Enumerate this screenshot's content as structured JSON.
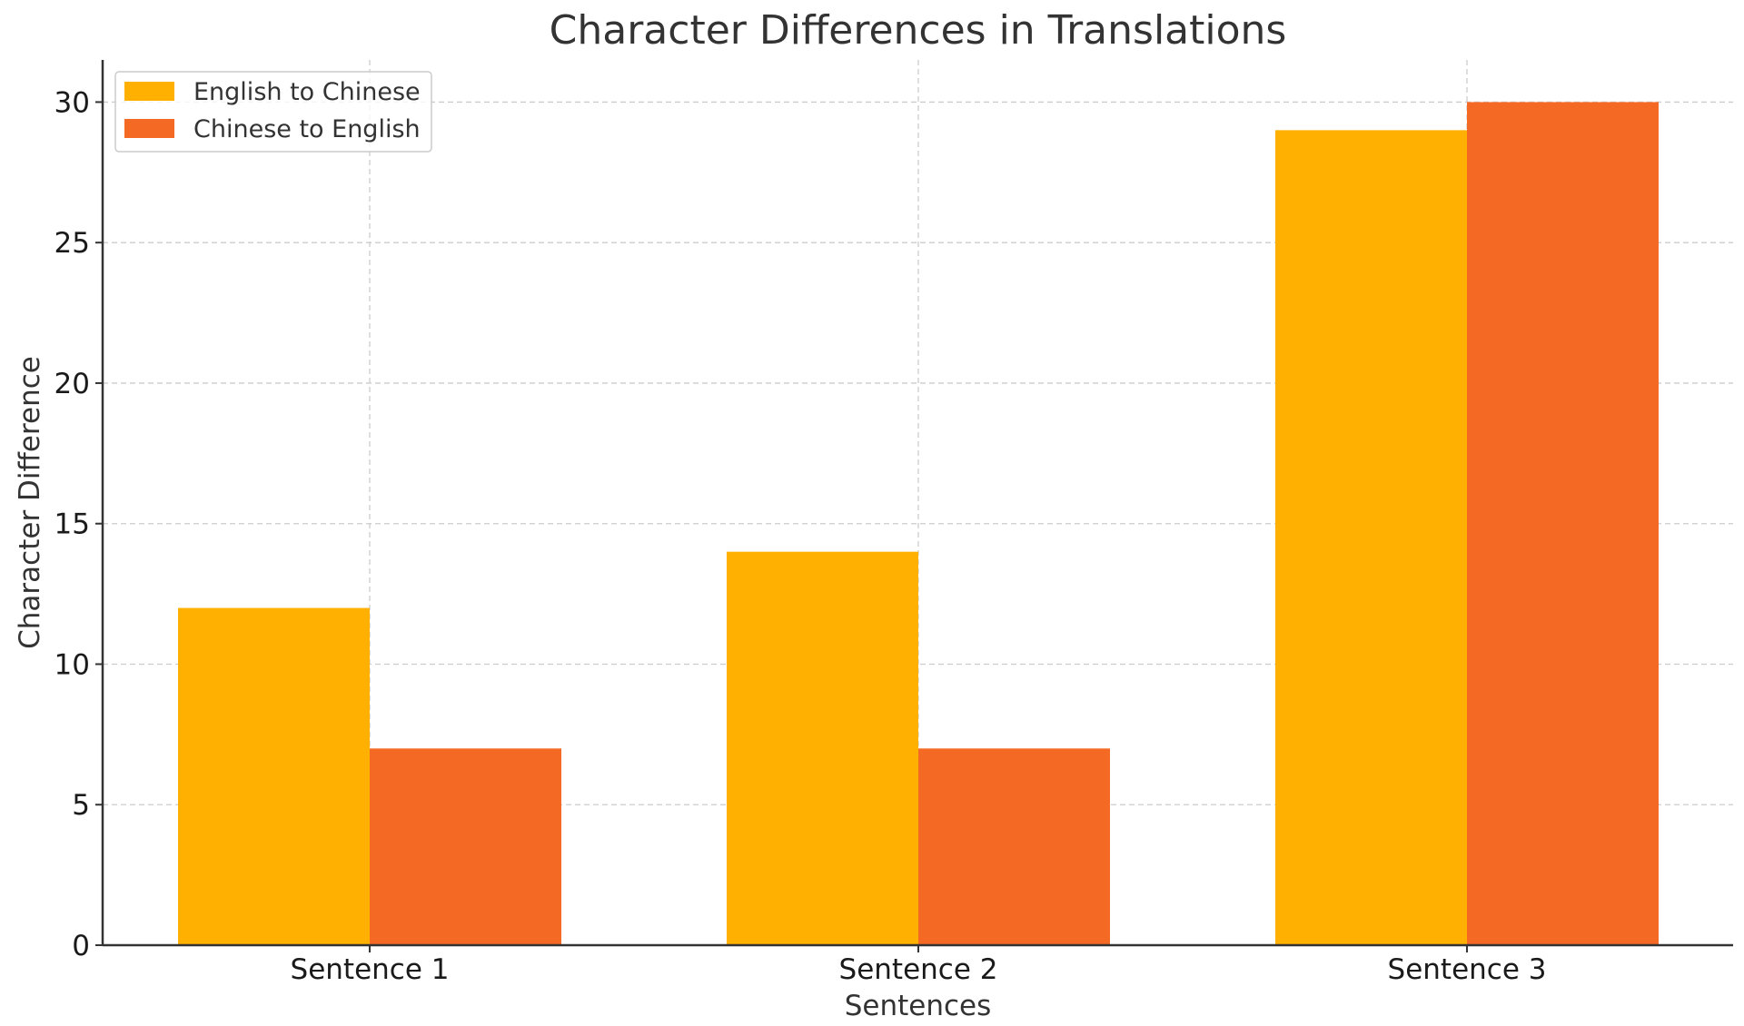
{
  "chart_data": {
    "type": "bar",
    "title": "Character Differences in Translations",
    "xlabel": "Sentences",
    "ylabel": "Character Difference",
    "categories": [
      "Sentence 1",
      "Sentence 2",
      "Sentence 3"
    ],
    "series": [
      {
        "name": "English to Chinese",
        "values": [
          12,
          14,
          29
        ],
        "color": "#FFB000"
      },
      {
        "name": "Chinese to English",
        "values": [
          7,
          7,
          30
        ],
        "color": "#F46A24"
      }
    ],
    "ylim": [
      0,
      31.5
    ],
    "yticks": [
      0,
      5,
      10,
      15,
      20,
      25,
      30
    ],
    "grid": true,
    "legend_position": "top-left"
  }
}
